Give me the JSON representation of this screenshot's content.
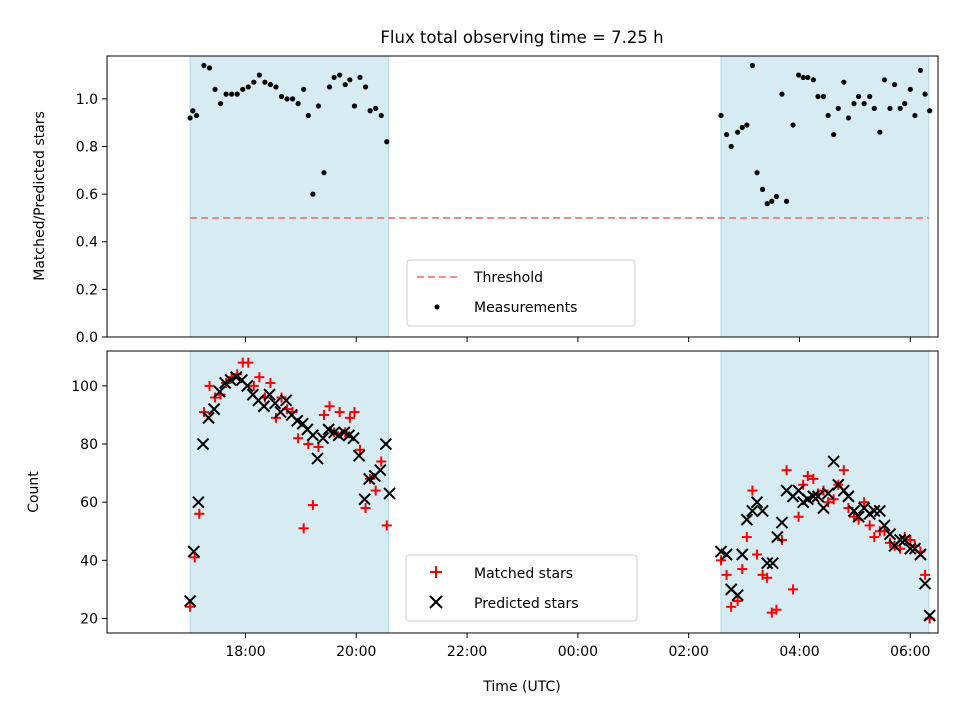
{
  "title": "Flux total observing time = 7.25 h",
  "chart_data": [
    {
      "type": "scatter",
      "ylabel": "Matched/Predicted stars",
      "ylim": [
        0,
        1.18
      ],
      "yticks": [
        "0.0",
        "0.2",
        "0.4",
        "0.6",
        "0.8",
        "1.0"
      ],
      "xlim_hours": [
        15.5,
        30.5
      ],
      "threshold": {
        "label": "Threshold",
        "value": 0.5,
        "color": "#f08080"
      },
      "legend": {
        "position": "lower-center",
        "entries": [
          "Threshold",
          "Measurements"
        ]
      },
      "shaded_intervals": [
        [
          "17:00",
          "20:35"
        ],
        [
          "02:35",
          "06:20"
        ]
      ],
      "series": [
        {
          "name": "Measurements",
          "marker": "dot",
          "color": "#000000",
          "x": [
            "17:00",
            "17:03",
            "17:07",
            "17:15",
            "17:21",
            "17:27",
            "17:33",
            "17:39",
            "17:45",
            "17:51",
            "17:57",
            "18:03",
            "18:09",
            "18:15",
            "18:21",
            "18:27",
            "18:33",
            "18:39",
            "18:45",
            "18:51",
            "18:57",
            "19:03",
            "19:08",
            "19:13",
            "19:19",
            "19:25",
            "19:31",
            "19:36",
            "19:42",
            "19:48",
            "19:53",
            "19:58",
            "20:04",
            "20:10",
            "20:15",
            "20:21",
            "20:27",
            "20:33",
            "02:35",
            "02:41",
            "02:46",
            "02:53",
            "02:58",
            "03:03",
            "03:09",
            "03:14",
            "03:20",
            "03:25",
            "03:30",
            "03:35",
            "03:41",
            "03:46",
            "03:53",
            "03:59",
            "04:04",
            "04:09",
            "04:15",
            "04:20",
            "04:26",
            "04:31",
            "04:37",
            "04:42",
            "04:48",
            "04:53",
            "04:59",
            "05:04",
            "05:10",
            "05:16",
            "05:21",
            "05:27",
            "05:32",
            "05:38",
            "05:43",
            "05:49",
            "05:54",
            "06:00",
            "06:05",
            "06:11",
            "06:16",
            "06:21"
          ],
          "y": [
            0.92,
            0.95,
            0.93,
            1.14,
            1.13,
            1.04,
            0.98,
            1.02,
            1.02,
            1.02,
            1.04,
            1.05,
            1.07,
            1.1,
            1.07,
            1.06,
            1.05,
            1.01,
            1.0,
            1.0,
            0.98,
            1.04,
            0.93,
            0.6,
            0.97,
            0.69,
            1.05,
            1.09,
            1.1,
            1.06,
            1.08,
            0.97,
            1.09,
            1.05,
            0.95,
            0.96,
            0.93,
            0.82,
            0.93,
            0.85,
            0.8,
            0.86,
            0.88,
            0.89,
            1.14,
            0.69,
            0.62,
            0.56,
            0.57,
            0.59,
            1.02,
            0.57,
            0.89,
            1.1,
            1.09,
            1.09,
            1.08,
            1.01,
            1.01,
            0.93,
            0.85,
            0.96,
            1.07,
            0.92,
            0.98,
            1.01,
            0.98,
            1.01,
            0.96,
            0.86,
            1.08,
            0.96,
            1.06,
            0.96,
            0.98,
            1.04,
            0.93,
            1.12,
            1.02,
            0.95
          ]
        }
      ]
    },
    {
      "type": "scatter",
      "ylabel": "Count",
      "xlabel": "Time (UTC)",
      "ylim": [
        15,
        112
      ],
      "yticks": [
        "20",
        "40",
        "60",
        "80",
        "100"
      ],
      "xticks": [
        "18:00",
        "20:00",
        "22:00",
        "00:00",
        "02:00",
        "04:00",
        "06:00"
      ],
      "legend": {
        "position": "lower-center",
        "entries": [
          "Matched stars",
          "Predicted stars"
        ]
      },
      "shaded_intervals": [
        [
          "17:00",
          "20:35"
        ],
        [
          "02:35",
          "06:20"
        ]
      ],
      "series": [
        {
          "name": "Matched stars",
          "marker": "plus",
          "color": "#ff0000",
          "x": [
            "17:00",
            "17:05",
            "17:10",
            "17:15",
            "17:21",
            "17:27",
            "17:33",
            "17:39",
            "17:45",
            "17:51",
            "17:57",
            "18:03",
            "18:09",
            "18:15",
            "18:21",
            "18:27",
            "18:33",
            "18:39",
            "18:45",
            "18:51",
            "18:57",
            "19:03",
            "19:08",
            "19:13",
            "19:19",
            "19:25",
            "19:31",
            "19:36",
            "19:42",
            "19:48",
            "19:53",
            "19:58",
            "20:04",
            "20:10",
            "20:15",
            "20:21",
            "20:27",
            "20:33",
            "02:35",
            "02:41",
            "02:46",
            "02:53",
            "02:58",
            "03:03",
            "03:09",
            "03:14",
            "03:20",
            "03:25",
            "03:30",
            "03:35",
            "03:41",
            "03:46",
            "03:53",
            "03:59",
            "04:04",
            "04:09",
            "04:15",
            "04:20",
            "04:26",
            "04:31",
            "04:37",
            "04:42",
            "04:48",
            "04:53",
            "04:59",
            "05:04",
            "05:10",
            "05:16",
            "05:21",
            "05:27",
            "05:32",
            "05:38",
            "05:43",
            "05:49",
            "05:54",
            "06:00",
            "06:05",
            "06:11",
            "06:16",
            "06:21"
          ],
          "y": [
            24,
            41,
            56,
            91,
            100,
            96,
            97,
            101,
            103,
            104,
            108,
            108,
            100,
            103,
            96,
            101,
            89,
            96,
            92,
            91,
            82,
            51,
            80,
            59,
            79,
            90,
            93,
            84,
            91,
            84,
            89,
            91,
            78,
            58,
            68,
            64,
            74,
            52,
            40,
            35,
            24,
            26,
            37,
            48,
            64,
            42,
            35,
            34,
            22,
            23,
            47,
            71,
            30,
            55,
            66,
            69,
            68,
            63,
            64,
            60,
            61,
            66,
            71,
            58,
            55,
            54,
            60,
            52,
            48,
            50,
            50,
            46,
            45,
            44,
            48,
            47,
            45,
            43,
            35,
            20
          ]
        },
        {
          "name": "Predicted stars",
          "marker": "x",
          "color": "#000000",
          "x": [
            "17:00",
            "17:04",
            "17:09",
            "17:14",
            "17:20",
            "17:26",
            "17:32",
            "17:38",
            "17:44",
            "17:50",
            "17:56",
            "18:02",
            "18:08",
            "18:14",
            "18:20",
            "18:26",
            "18:32",
            "18:38",
            "18:44",
            "18:50",
            "18:56",
            "19:02",
            "19:07",
            "19:13",
            "19:18",
            "19:24",
            "19:30",
            "19:36",
            "19:41",
            "19:47",
            "19:52",
            "19:57",
            "20:03",
            "20:09",
            "20:14",
            "20:20",
            "20:26",
            "20:32",
            "20:36",
            "02:35",
            "02:41",
            "02:46",
            "02:53",
            "02:58",
            "03:03",
            "03:09",
            "03:14",
            "03:20",
            "03:25",
            "03:31",
            "03:36",
            "03:41",
            "03:46",
            "03:53",
            "03:59",
            "04:04",
            "04:09",
            "04:15",
            "04:20",
            "04:26",
            "04:31",
            "04:37",
            "04:42",
            "04:48",
            "04:53",
            "04:59",
            "05:04",
            "05:10",
            "05:16",
            "05:21",
            "05:27",
            "05:32",
            "05:38",
            "05:43",
            "05:49",
            "05:54",
            "06:00",
            "06:05",
            "06:11",
            "06:16",
            "06:21"
          ],
          "y": [
            26,
            43,
            60,
            80,
            89,
            92,
            98,
            101,
            102,
            103,
            102,
            100,
            97,
            95,
            93,
            97,
            94,
            91,
            95,
            90,
            88,
            87,
            85,
            83,
            75,
            82,
            85,
            84,
            83,
            84,
            83,
            82,
            76,
            61,
            68,
            69,
            71,
            80,
            63,
            43,
            42,
            30,
            28,
            42,
            54,
            57,
            60,
            57,
            39,
            39,
            48,
            53,
            64,
            62,
            64,
            60,
            61,
            62,
            62,
            58,
            63,
            74,
            66,
            64,
            62,
            57,
            55,
            58,
            56,
            57,
            57,
            52,
            49,
            45,
            47,
            47,
            44,
            44,
            42,
            32,
            21
          ]
        }
      ]
    }
  ]
}
